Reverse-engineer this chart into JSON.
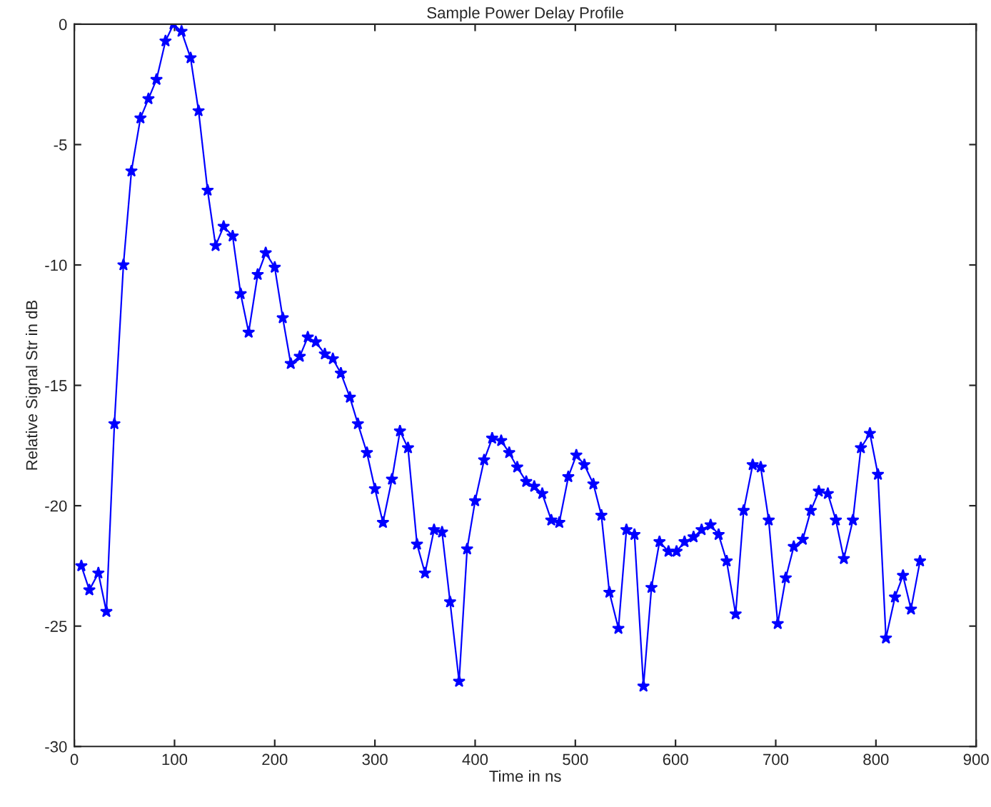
{
  "chart_data": {
    "type": "line",
    "title": "Sample Power Delay Profile",
    "xlabel": "Time in ns",
    "ylabel": "Relative Signal Str in dB",
    "x": [
      7,
      15,
      24,
      32,
      40,
      49,
      57,
      66,
      74,
      82,
      91,
      99,
      107,
      116,
      124,
      133,
      141,
      149,
      158,
      166,
      174,
      183,
      191,
      200,
      208,
      216,
      225,
      233,
      241,
      250,
      258,
      266,
      275,
      283,
      292,
      300,
      308,
      317,
      325,
      333,
      342,
      350,
      359,
      367,
      375,
      384,
      392,
      400,
      409,
      417,
      426,
      434,
      442,
      451,
      459,
      467,
      476,
      484,
      493,
      501,
      509,
      518,
      526,
      534,
      543,
      551,
      559,
      568,
      576,
      584,
      593,
      601,
      609,
      618,
      626,
      635,
      643,
      651,
      660,
      668,
      677,
      685,
      693,
      702,
      710,
      718,
      727,
      735,
      743,
      752,
      760,
      768,
      777,
      785,
      794,
      802,
      810,
      819,
      827,
      835,
      844
    ],
    "series": [
      {
        "color": "#0000ff",
        "values": [
          -22.5,
          -23.5,
          -22.8,
          -24.4,
          -16.6,
          -10.0,
          -6.1,
          -3.9,
          -3.1,
          -2.3,
          -0.7,
          0,
          -0.3,
          -1.4,
          -3.6,
          -6.9,
          -9.2,
          -8.4,
          -8.8,
          -11.2,
          -12.8,
          -10.4,
          -9.5,
          -10.1,
          -12.2,
          -14.1,
          -13.8,
          -13.0,
          -13.2,
          -13.7,
          -13.9,
          -14.5,
          -15.5,
          -16.6,
          -17.8,
          -19.3,
          -20.7,
          -18.9,
          -16.9,
          -17.6,
          -21.6,
          -22.8,
          -21.0,
          -21.1,
          -24.0,
          -27.3,
          -21.8,
          -19.8,
          -18.1,
          -17.2,
          -17.3,
          -17.8,
          -18.4,
          -19.0,
          -19.2,
          -19.5,
          -20.6,
          -20.7,
          -18.8,
          -17.9,
          -18.3,
          -19.1,
          -20.4,
          -23.6,
          -25.1,
          -21.0,
          -21.2,
          -27.5,
          -23.4,
          -21.5,
          -21.9,
          -21.9,
          -21.5,
          -21.3,
          -21.0,
          -20.8,
          -21.2,
          -22.3,
          -24.5,
          -20.2,
          -18.3,
          -18.4,
          -20.6,
          -24.9,
          -23.0,
          -21.7,
          -21.4,
          -20.2,
          -19.4,
          -19.5,
          -20.6,
          -22.2,
          -20.6,
          -17.6,
          -17.0,
          -18.7,
          -25.5,
          -23.8,
          -22.9,
          -24.3,
          -22.3
        ]
      }
    ],
    "xlim": [
      0,
      900
    ],
    "xticks": [
      0,
      100,
      200,
      300,
      400,
      500,
      600,
      700,
      800,
      900
    ],
    "ylim": [
      -30,
      0
    ],
    "yticks": [
      -30,
      -25,
      -20,
      -15,
      -10,
      -5,
      0
    ],
    "marker": "star",
    "line_style": "solid",
    "grid": false,
    "legend": false
  }
}
